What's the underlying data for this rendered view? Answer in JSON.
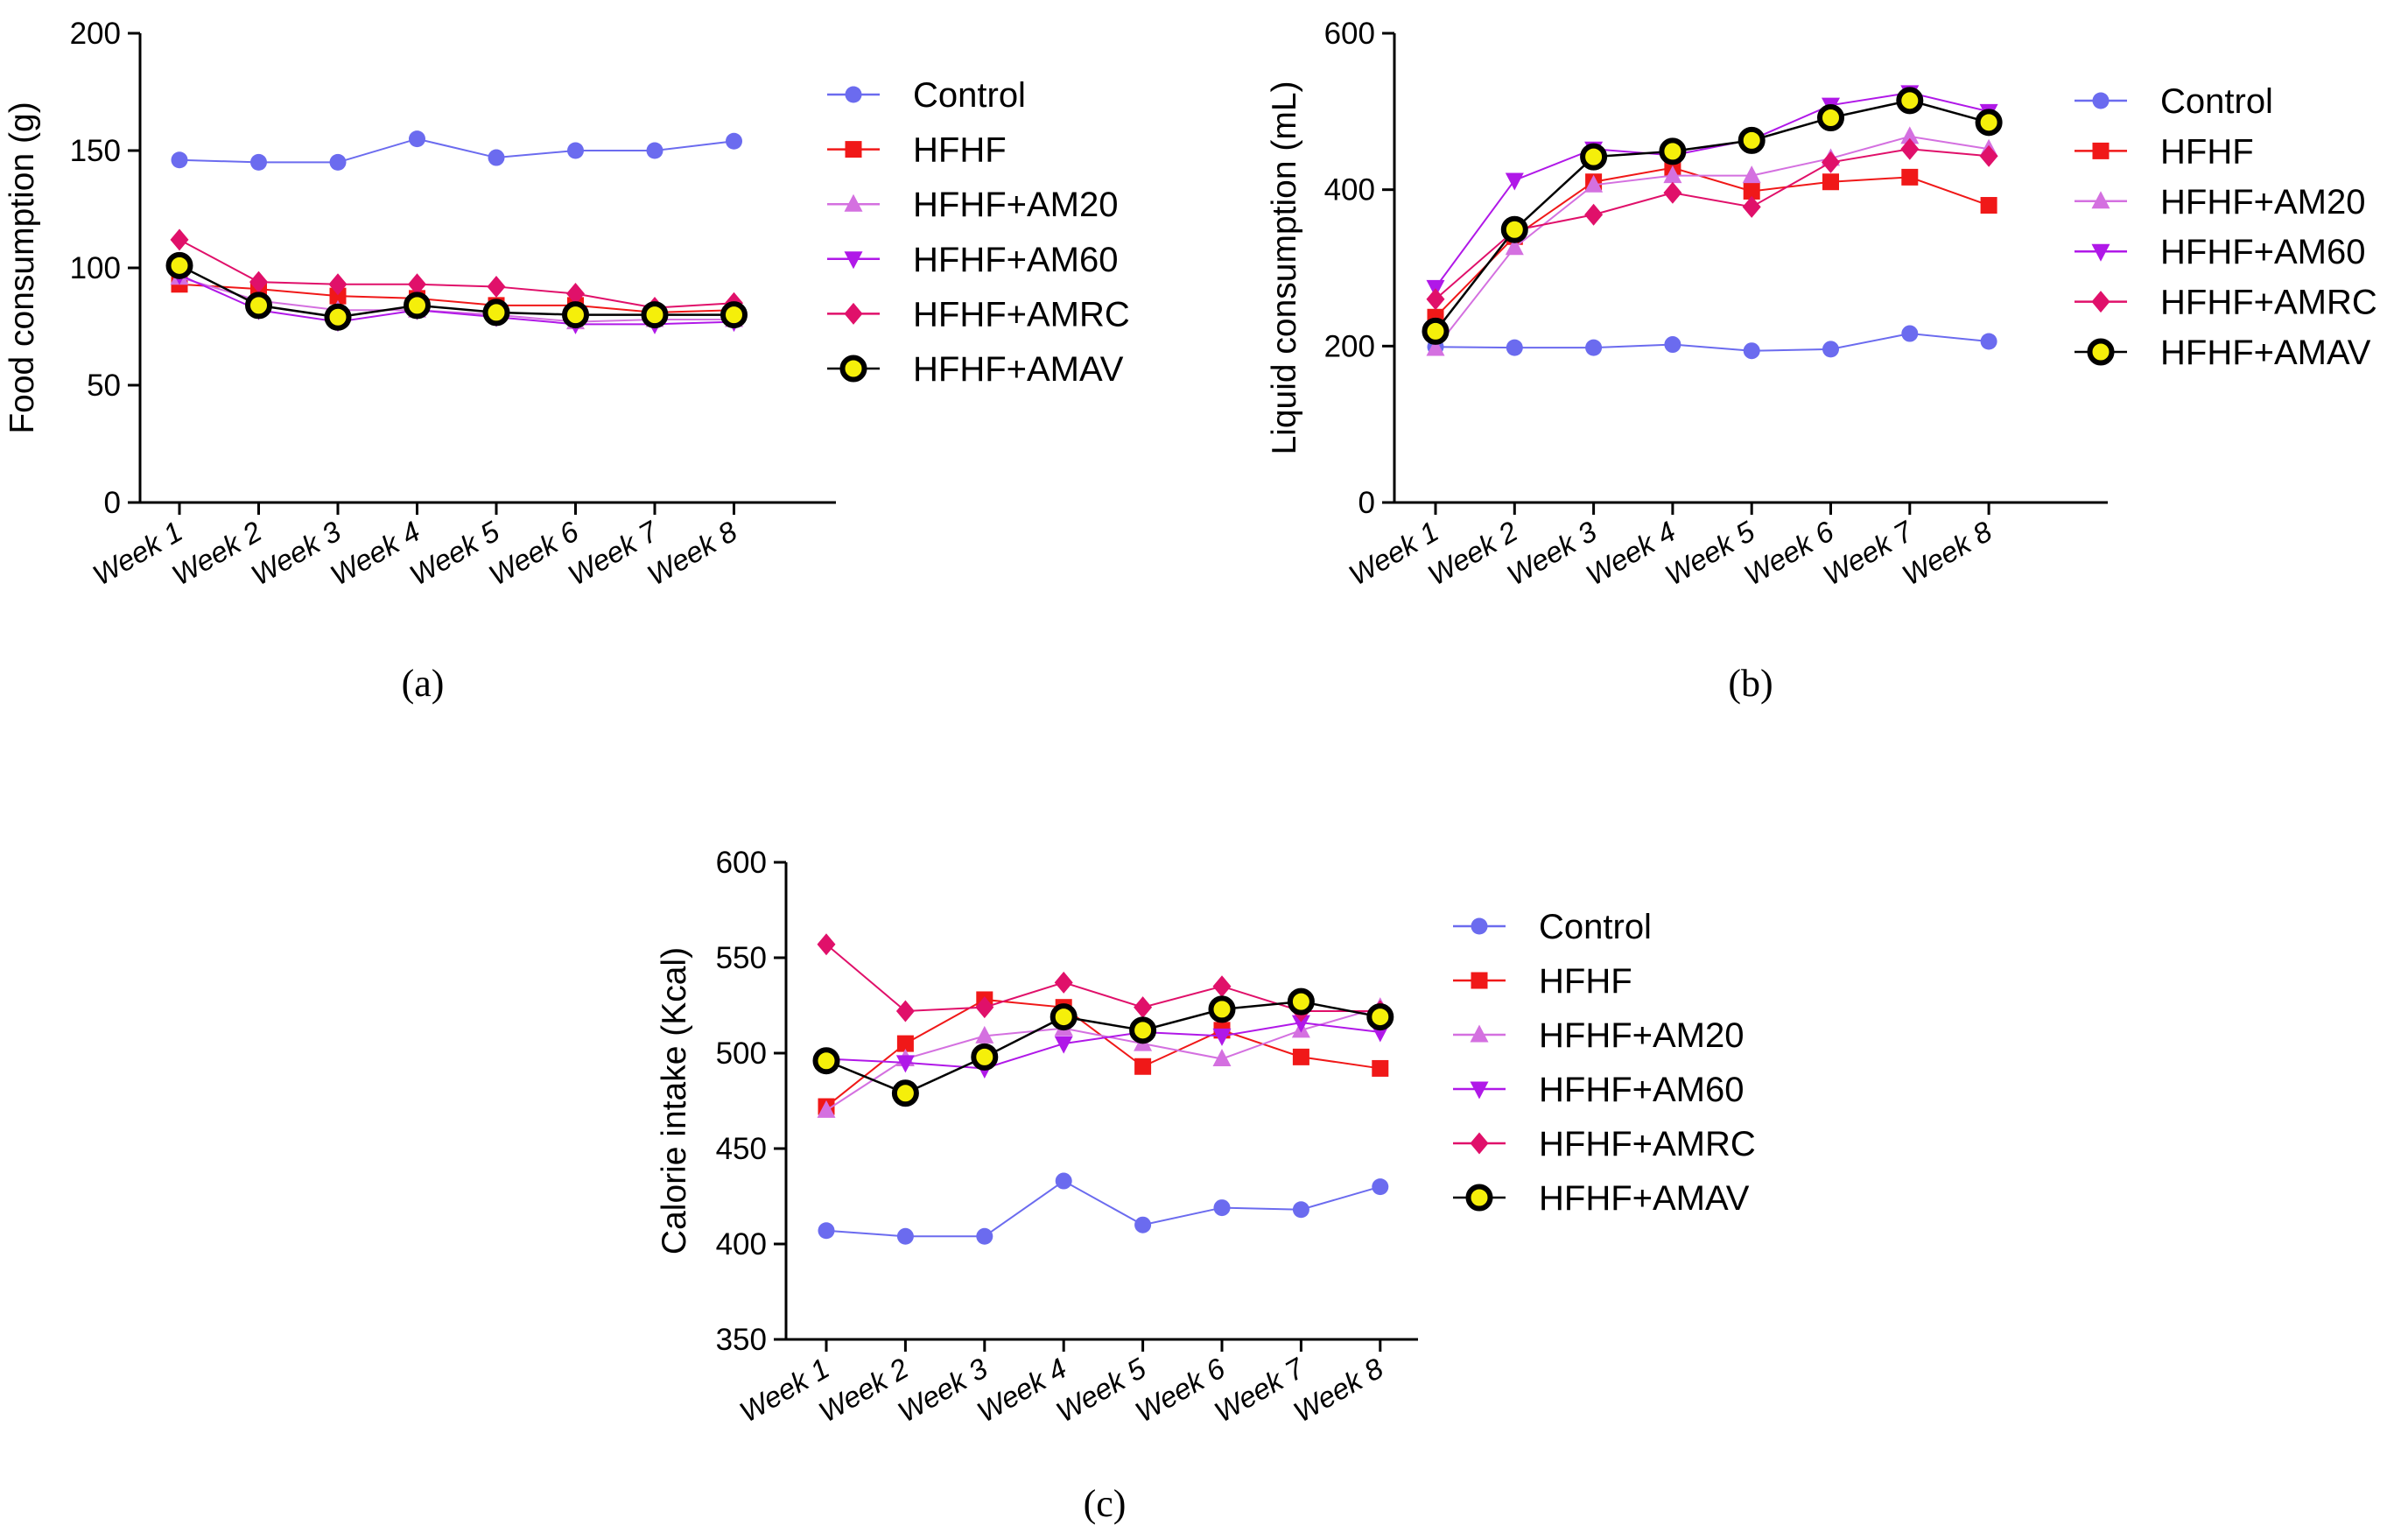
{
  "colors": {
    "Control": "#6b6bef",
    "HFHF": "#f01818",
    "HFHF+AM20": "#d470e0",
    "HFHF+AM60": "#b018e8",
    "HFHF+AMRC": "#e0106a",
    "HFHF+AMAV": "#000000",
    "AMAV_fill": "#f5ef0a"
  },
  "chart_data": [
    {
      "type": "line",
      "panel_label": "(a)",
      "ylabel": "Food consumption (g)",
      "xlabel": "",
      "ylim": [
        0,
        200
      ],
      "yticks": [
        0,
        50,
        100,
        150,
        200
      ],
      "categories": [
        "Week 1",
        "Week 2",
        "Week 3",
        "Week 4",
        "Week 5",
        "Week 6",
        "Week 7",
        "Week 8"
      ],
      "legend": [
        "Control",
        "HFHF",
        "HFHF+AM20",
        "HFHF+AM60",
        "HFHF+AMRC",
        "HFHF+AMAV"
      ],
      "series": [
        {
          "name": "Control",
          "values": [
            146,
            145,
            145,
            155,
            147,
            150,
            150,
            154
          ]
        },
        {
          "name": "HFHF",
          "values": [
            93,
            91,
            88,
            87,
            84,
            84,
            81,
            82
          ]
        },
        {
          "name": "HFHF+AM20",
          "values": [
            96,
            86,
            82,
            82,
            80,
            77,
            78,
            78
          ]
        },
        {
          "name": "HFHF+AM60",
          "values": [
            97,
            82,
            77,
            82,
            79,
            76,
            76,
            77
          ]
        },
        {
          "name": "HFHF+AMRC",
          "values": [
            112,
            94,
            93,
            93,
            92,
            89,
            83,
            85
          ]
        },
        {
          "name": "HFHF+AMAV",
          "values": [
            101,
            84,
            79,
            84,
            81,
            80,
            80,
            80
          ]
        }
      ]
    },
    {
      "type": "line",
      "panel_label": "(b)",
      "ylabel": "Liquid consumption (mL)",
      "xlabel": "",
      "ylim": [
        0,
        600
      ],
      "yticks": [
        0,
        200,
        400,
        600
      ],
      "categories": [
        "Week 1",
        "Week 2",
        "Week 3",
        "Week 4",
        "Week 5",
        "Week 6",
        "Week 7",
        "Week 8"
      ],
      "legend": [
        "Control",
        "HFHF",
        "HFHF+AM20",
        "HFHF+AM60",
        "HFHF+AMRC",
        "HFHF+AMAV"
      ],
      "series": [
        {
          "name": "Control",
          "values": [
            199,
            198,
            198,
            202,
            194,
            196,
            216,
            206
          ]
        },
        {
          "name": "HFHF",
          "values": [
            237,
            340,
            410,
            428,
            398,
            410,
            416,
            380
          ]
        },
        {
          "name": "HFHF+AM20",
          "values": [
            197,
            326,
            406,
            418,
            418,
            440,
            468,
            452
          ]
        },
        {
          "name": "HFHF+AM60",
          "values": [
            275,
            412,
            452,
            444,
            464,
            508,
            524,
            500
          ]
        },
        {
          "name": "HFHF+AMRC",
          "values": [
            260,
            348,
            368,
            396,
            378,
            435,
            452,
            443
          ]
        },
        {
          "name": "HFHF+AMAV",
          "values": [
            219,
            349,
            442,
            449,
            463,
            492,
            514,
            486
          ]
        }
      ]
    },
    {
      "type": "line",
      "panel_label": "(c)",
      "ylabel": "Calorie intake (Kcal)",
      "xlabel": "",
      "ylim": [
        350,
        600
      ],
      "yticks": [
        350,
        400,
        450,
        500,
        550,
        600
      ],
      "categories": [
        "Week 1",
        "Week 2",
        "Week 3",
        "Week 4",
        "Week 5",
        "Week 6",
        "Week 7",
        "Week 8"
      ],
      "legend": [
        "Control",
        "HFHF",
        "HFHF+AM20",
        "HFHF+AM60",
        "HFHF+AMRC",
        "HFHF+AMAV"
      ],
      "series": [
        {
          "name": "Control",
          "values": [
            407,
            404,
            404,
            433,
            410,
            419,
            418,
            430
          ]
        },
        {
          "name": "HFHF",
          "values": [
            472,
            505,
            528,
            524,
            493,
            512,
            498,
            492
          ]
        },
        {
          "name": "HFHF+AM20",
          "values": [
            470,
            497,
            509,
            513,
            505,
            497,
            512,
            524
          ]
        },
        {
          "name": "HFHF+AM60",
          "values": [
            497,
            495,
            492,
            505,
            511,
            509,
            516,
            511
          ]
        },
        {
          "name": "HFHF+AMRC",
          "values": [
            557,
            522,
            524,
            537,
            524,
            535,
            522,
            522
          ]
        },
        {
          "name": "HFHF+AMAV",
          "values": [
            496,
            479,
            498,
            519,
            512,
            523,
            527,
            519
          ]
        }
      ]
    }
  ]
}
